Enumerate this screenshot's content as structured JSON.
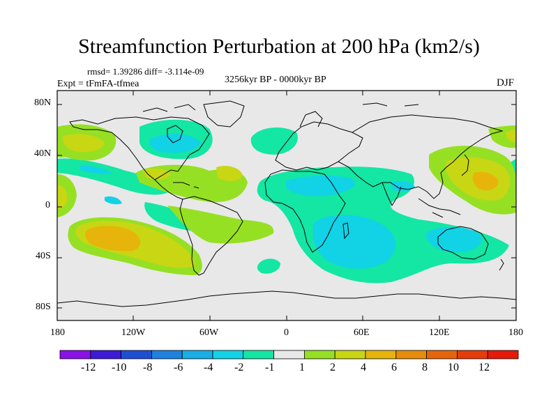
{
  "title": "Streamfunction Perturbation at 200 hPa (km2/s)",
  "stats": "rmsd= 1.39286 diff= -3.114e-09",
  "period": "3256kyr BP - 0000kyr BP",
  "experiment": "Expt = tFmFA-tfmea",
  "season": "DJF",
  "lat_labels": [
    "80N",
    "40N",
    "0",
    "40S",
    "80S"
  ],
  "lon_labels": [
    "180",
    "120W",
    "60W",
    "0",
    "60E",
    "120E",
    "180"
  ],
  "colorbar": {
    "labels": [
      "-12",
      "-10",
      "-8",
      "-6",
      "-4",
      "-2",
      "-1",
      "1",
      "2",
      "4",
      "6",
      "8",
      "10",
      "12"
    ],
    "colors": [
      "#8a12e8",
      "#3c1cd6",
      "#1e4fd2",
      "#1e82e0",
      "#18aee6",
      "#12d2e6",
      "#14e6a4",
      "#e8e8e8",
      "#96e024",
      "#c8d614",
      "#e6b40a",
      "#e68c0a",
      "#e6640a",
      "#e63c0a",
      "#e61a0a"
    ]
  },
  "colors": {
    "neutral": "#e8e8e8",
    "coast": "#000000"
  }
}
